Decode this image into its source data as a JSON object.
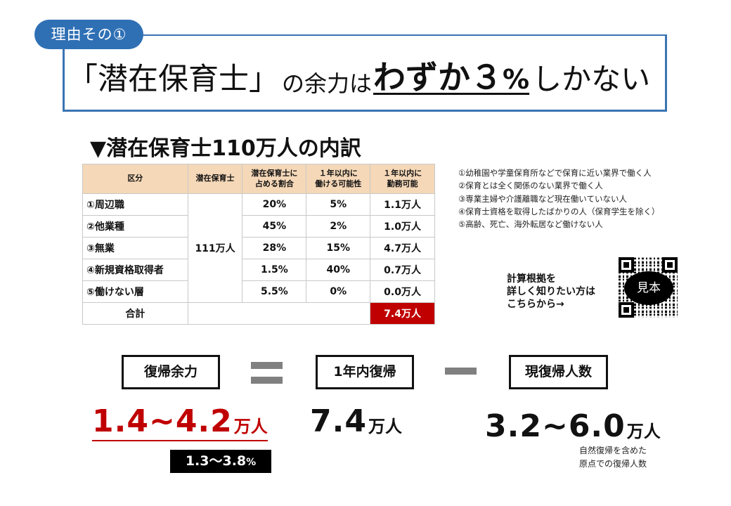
{
  "header": {
    "badge_label": "理由その①",
    "title_part_1": "「潜在保育士」",
    "title_part_2": "の余力は",
    "title_part_3_emphasis": "わずか３",
    "title_part_3_percent": "%",
    "title_part_4": "しかない"
  },
  "section": {
    "title": "▼潜在保育士110万人の内訳"
  },
  "table": {
    "headers": [
      "区分",
      "潜在保育士",
      "潜在保育士に\n占める割合",
      "１年以内に\n働ける可能性",
      "１年以内に\n勤務可能"
    ],
    "header_lines": [
      [
        "区分"
      ],
      [
        "潜在保育士"
      ],
      [
        "潜在保育士に",
        "占める割合"
      ],
      [
        "１年以内に",
        "働ける可能性"
      ],
      [
        "１年以内に",
        "勤務可能"
      ]
    ],
    "total_potential": "111万人",
    "rows": [
      {
        "category": "①周辺職",
        "share": "20%",
        "probability": "5%",
        "available": "1.1万人"
      },
      {
        "category": "②他業種",
        "share": "45%",
        "probability": "2%",
        "available": "1.0万人"
      },
      {
        "category": "③無業",
        "share": "28%",
        "probability": "15%",
        "available": "4.7万人"
      },
      {
        "category": "④新規資格取得者",
        "share": "1.5%",
        "probability": "40%",
        "available": "0.7万人"
      },
      {
        "category": "⑤働けない層",
        "share": "5.5%",
        "probability": "0%",
        "available": "0.0万人"
      }
    ],
    "total_label": "合計",
    "total_value": "7.4万人",
    "total_highlight_color": "#c00000",
    "header_bg_color": "#f5d8b8"
  },
  "notes": [
    "①幼稚園や学童保育所などで保育に近い業界で働く人",
    "②保育とは全く関係のない業界で働く人",
    "③専業主婦や介護離職など現在働いていない人",
    "④保育士資格を取得したばかりの人（保育学生を除く）",
    "⑤高齢、死亡、海外転居など働けない人"
  ],
  "qr_section": {
    "lines": [
      "計算根拠を",
      "詳しく知りたい方は",
      "こちらから→"
    ],
    "qr_overlay_label": "見本",
    "icon": "qr-code-icon"
  },
  "equation": {
    "term_1_label": "復帰余力",
    "operator_1": "=",
    "term_2_label": "1年内復帰",
    "operator_2": "−",
    "term_3_label": "現復帰人数",
    "value_1_number": "1.4~4.2",
    "value_1_unit": "万人",
    "value_1_percent_number": "1.3〜3.8",
    "value_1_percent_unit": "%",
    "value_2_number": "7.4",
    "value_2_unit": "万人",
    "value_3_number": "3.2~6.0",
    "value_3_unit": "万人",
    "value_3_note_lines": [
      "自然復帰を含めた",
      "原点での復帰人数"
    ],
    "accent_color": "#c00000"
  },
  "colors": {
    "frame_blue": "#3a74b3",
    "badge_blue": "#2f70b5",
    "operator_gray": "#808080"
  }
}
